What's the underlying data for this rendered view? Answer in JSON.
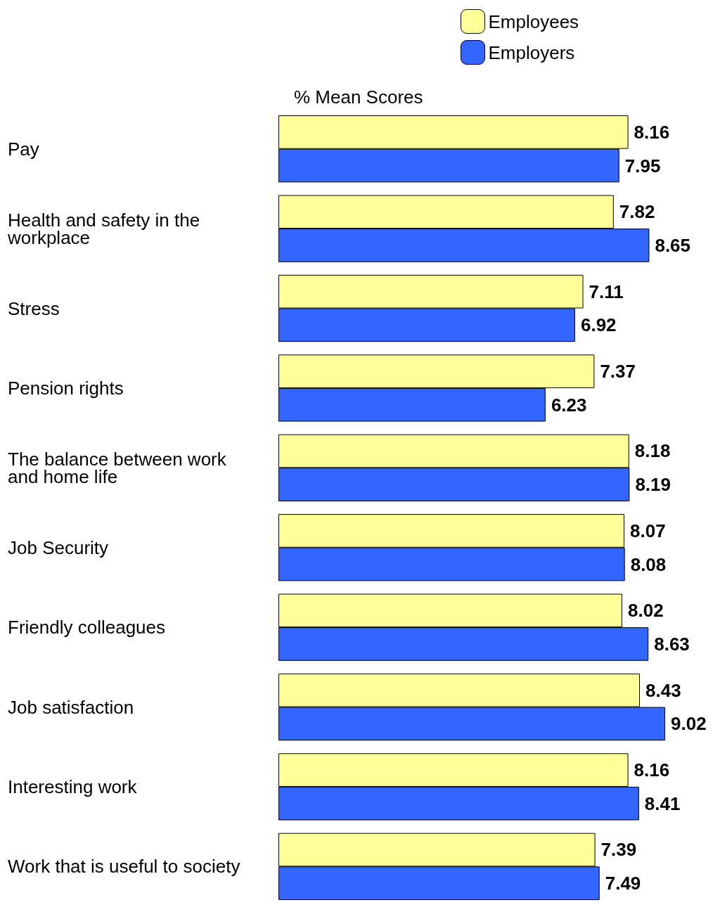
{
  "chart_data": {
    "type": "bar",
    "orientation": "horizontal",
    "title": "% Mean Scores",
    "categories": [
      "Pay",
      "Health and safety in the workplace",
      "Stress",
      "Pension rights",
      "The balance between work and home life",
      "Job Security",
      "Friendly colleagues",
      "Job satisfaction",
      "Interesting work",
      "Work that is useful to society"
    ],
    "series": [
      {
        "name": "Employees",
        "color": "#ffff99",
        "values": [
          8.16,
          7.82,
          7.11,
          7.37,
          8.18,
          8.07,
          8.02,
          8.43,
          8.16,
          7.39
        ]
      },
      {
        "name": "Employers",
        "color": "#3366ff",
        "values": [
          7.95,
          8.65,
          6.92,
          6.23,
          8.19,
          8.08,
          8.63,
          9.02,
          8.41,
          7.49
        ]
      }
    ],
    "data_labels": true,
    "legend": "top right"
  }
}
